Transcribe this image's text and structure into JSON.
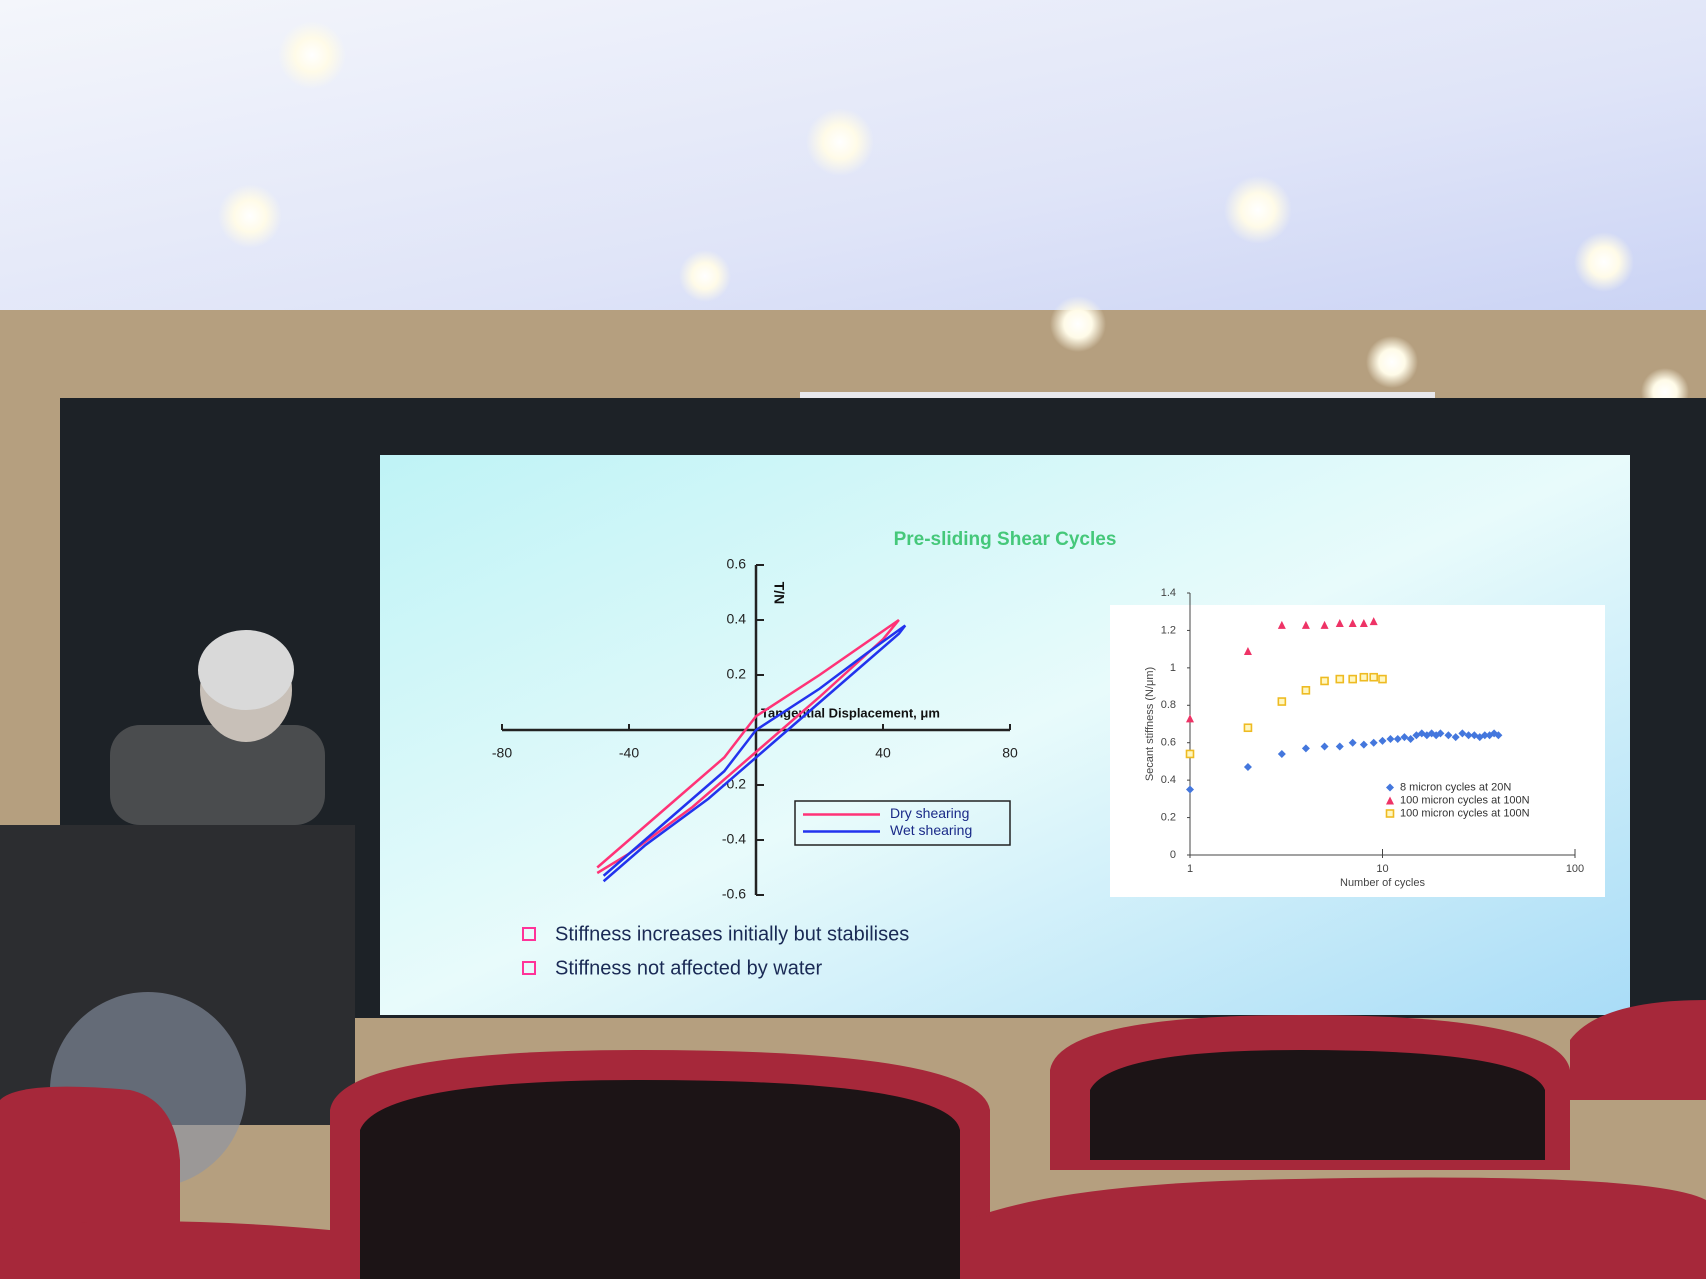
{
  "slide": {
    "title": "Pre-sliding Shear Cycles",
    "bullets": [
      "Stiffness increases initially but stabilises",
      "Stiffness not affected by  water"
    ]
  },
  "chart_data": [
    {
      "type": "line",
      "ylabel": "T/N",
      "xlabel": "Tangential Displacement, μm",
      "xlim": [
        -80,
        80
      ],
      "xticks": [
        -80,
        -40,
        40,
        80
      ],
      "ylim": [
        -0.6,
        0.6
      ],
      "yticks": [
        -0.6,
        -0.4,
        -0.2,
        0.2,
        0.4,
        0.6
      ],
      "grid": false,
      "legend": "lower right",
      "series": [
        {
          "name": "Dry shearing",
          "color": "#ff3377",
          "x": [
            -50,
            -30,
            -10,
            0,
            20,
            30,
            45,
            40,
            20,
            0,
            -20,
            -40,
            -50
          ],
          "values": [
            -0.5,
            -0.3,
            -0.1,
            0.05,
            0.2,
            0.28,
            0.4,
            0.33,
            0.12,
            -0.08,
            -0.28,
            -0.45,
            -0.52
          ]
        },
        {
          "name": "Wet shearing",
          "color": "#2233ee",
          "x": [
            -48,
            -30,
            -10,
            0,
            20,
            35,
            47,
            45,
            25,
            5,
            -15,
            -35,
            -48
          ],
          "values": [
            -0.53,
            -0.35,
            -0.15,
            0.0,
            0.15,
            0.28,
            0.38,
            0.35,
            0.15,
            -0.05,
            -0.25,
            -0.42,
            -0.55
          ]
        }
      ]
    },
    {
      "type": "scatter",
      "ylabel": "Secant stiffness (N/μm)",
      "xlabel": "Number of cycles",
      "xlog": true,
      "xlim": [
        1,
        100
      ],
      "xticks": [
        1,
        10,
        100
      ],
      "ylim": [
        0,
        1.4
      ],
      "yticks": [
        0,
        0.2,
        0.4,
        0.6,
        0.8,
        1,
        1.2,
        1.4
      ],
      "grid": false,
      "legend": "lower right",
      "series": [
        {
          "name": "8 micron cycles at 20N",
          "color": "#4477dd",
          "marker": "diamond",
          "x": [
            1,
            2,
            3,
            4,
            5,
            6,
            7,
            8,
            9,
            10,
            11,
            12,
            13,
            14,
            15,
            16,
            17,
            18,
            19,
            20,
            22,
            24,
            26,
            28,
            30,
            32,
            34,
            36,
            38,
            40
          ],
          "values": [
            0.35,
            0.47,
            0.54,
            0.57,
            0.58,
            0.58,
            0.6,
            0.59,
            0.6,
            0.61,
            0.62,
            0.62,
            0.63,
            0.62,
            0.64,
            0.65,
            0.64,
            0.65,
            0.64,
            0.65,
            0.64,
            0.63,
            0.65,
            0.64,
            0.64,
            0.63,
            0.64,
            0.64,
            0.65,
            0.64
          ]
        },
        {
          "name": "100 micron cycles at 100N",
          "color": "#ee3366",
          "marker": "triangle",
          "x": [
            1,
            2,
            3,
            4,
            5,
            6,
            7,
            8,
            9
          ],
          "values": [
            0.73,
            1.09,
            1.23,
            1.23,
            1.23,
            1.24,
            1.24,
            1.24,
            1.25
          ]
        },
        {
          "name": "100 micron cycles at 100N",
          "color": "#eebb22",
          "marker": "square",
          "x": [
            1,
            2,
            3,
            4,
            5,
            6,
            7,
            8,
            9,
            10
          ],
          "values": [
            0.54,
            0.68,
            0.82,
            0.88,
            0.93,
            0.94,
            0.94,
            0.95,
            0.95,
            0.94
          ]
        }
      ]
    }
  ]
}
